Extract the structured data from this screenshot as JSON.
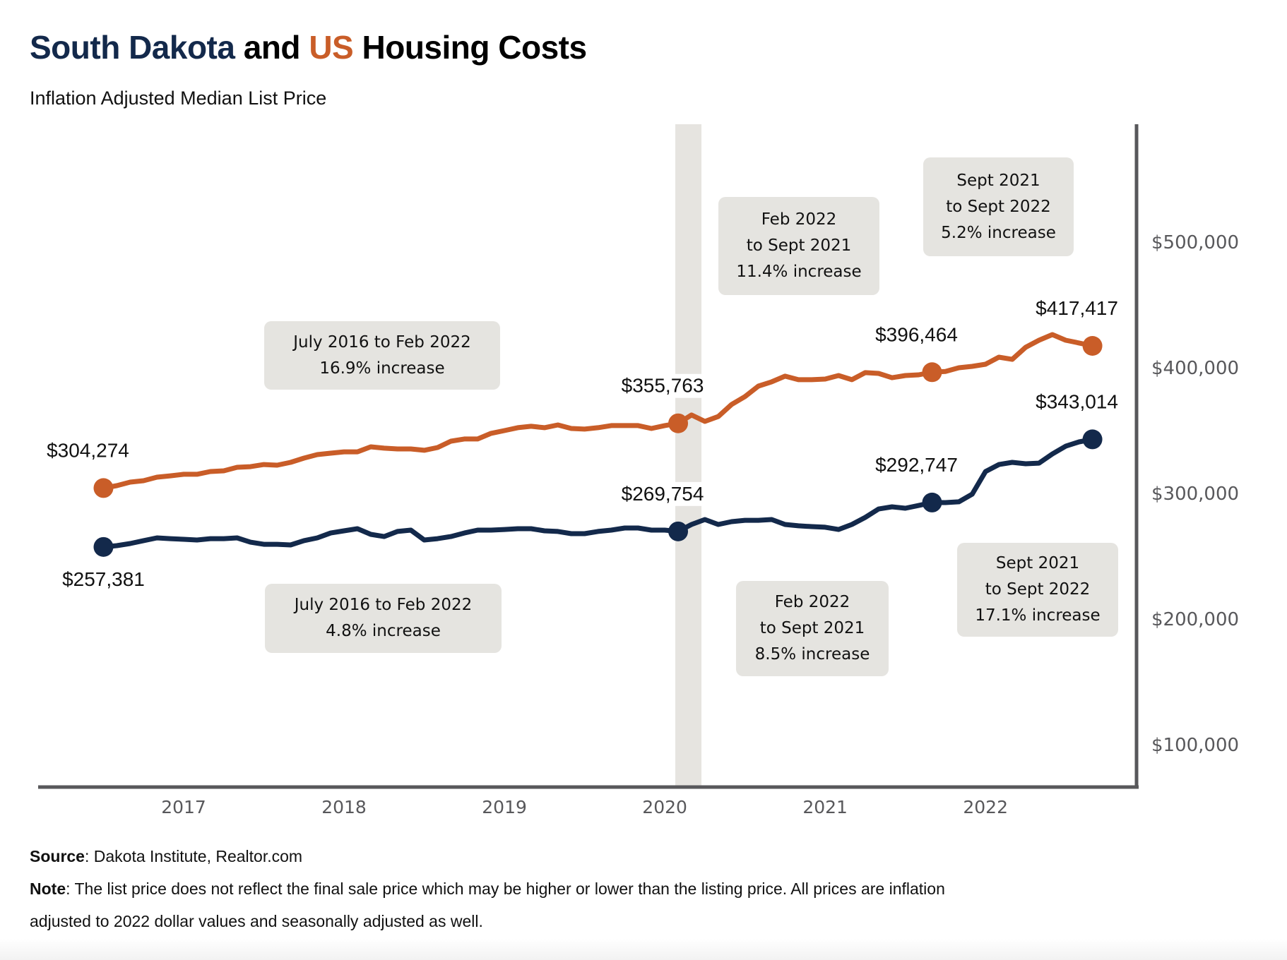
{
  "title": {
    "part1": "South Dakota",
    "part2": " and ",
    "part3": "US",
    "part4": " Housing Costs"
  },
  "subtitle": "Inflation Adjusted Median List Price",
  "colors": {
    "south_dakota": "#13294b",
    "us": "#c95d28",
    "axis": "#58585b",
    "tick_text": "#58585b",
    "band": "#e6e4e0",
    "annotation_bg": "#e5e4e0"
  },
  "footer": {
    "source_label": "Source",
    "source_text": ": Dakota Institute, Realtor.com",
    "note_label": "Note",
    "note_text": ": The list price does not reflect the final sale price which may be higher or lower than the listing price. All prices are inflation",
    "note_text_2": "adjusted to 2022 dollar values and seasonally adjusted as well."
  },
  "annotations": {
    "us_2016_2022": [
      "July 2016 to Feb 2022",
      "16.9% increase"
    ],
    "us_feb22_sep21": [
      "Feb 2022",
      "to Sept 2021",
      "11.4% increase"
    ],
    "us_sep21_sep22": [
      "Sept 2021",
      "to Sept 2022",
      "5.2% increase"
    ],
    "sd_2016_2022": [
      "July 2016 to Feb 2022",
      "4.8% increase"
    ],
    "sd_feb22_sep21": [
      "Feb 2022",
      "to Sept 2021",
      "8.5% increase"
    ],
    "sd_sep21_sep22": [
      "Sept 2021",
      "to Sept 2022",
      "17.1% increase"
    ]
  },
  "chart_data": {
    "type": "line",
    "title": "South Dakota and US Housing Costs",
    "subtitle": "Inflation Adjusted Median List Price",
    "xlabel": "",
    "ylabel": "",
    "x_start": "2016-07",
    "x_end": "2022-09",
    "x_frequency": "monthly",
    "x_ticks": [
      "2017",
      "2018",
      "2019",
      "2020",
      "2021",
      "2022"
    ],
    "y_ticks": [
      "$100,000",
      "$200,000",
      "$300,000",
      "$400,000",
      "$500,000"
    ],
    "y_tick_values": [
      100000,
      200000,
      300000,
      400000,
      500000
    ],
    "y_axis_side": "right",
    "grid": false,
    "legend": "none (series identified by title colors)",
    "highlight_band": {
      "x": "2020-02",
      "label": "vertical shaded band"
    },
    "series": [
      {
        "name": "US",
        "color": "#c95d28",
        "values": [
          304274,
          306200,
          309000,
          310100,
          312900,
          314000,
          315200,
          315200,
          317400,
          318000,
          320800,
          321300,
          323000,
          322500,
          324700,
          328100,
          330900,
          332000,
          333100,
          333100,
          337100,
          336000,
          335400,
          335400,
          334300,
          336500,
          341600,
          343300,
          343300,
          347800,
          350000,
          352300,
          353400,
          352300,
          354500,
          351700,
          351200,
          352300,
          354000,
          354000,
          354000,
          351700,
          354000,
          355763,
          362400,
          357300,
          361200,
          370800,
          377000,
          385400,
          388800,
          393300,
          390500,
          390500,
          391000,
          393800,
          390500,
          396100,
          395500,
          392100,
          393800,
          394400,
          396464,
          397100,
          400000,
          401100,
          402800,
          408400,
          406700,
          416300,
          421900,
          426400,
          421900,
          419700,
          417417
        ]
      },
      {
        "name": "South Dakota",
        "color": "#13294b",
        "values": [
          257381,
          258400,
          260100,
          262400,
          264600,
          264000,
          263500,
          262900,
          264000,
          264000,
          264600,
          261200,
          259500,
          259500,
          259000,
          262400,
          264600,
          268500,
          270200,
          271900,
          267400,
          265700,
          269700,
          270800,
          262900,
          264000,
          265700,
          268500,
          270800,
          270800,
          271300,
          271900,
          271900,
          270200,
          269700,
          268000,
          268000,
          269700,
          270800,
          272500,
          272500,
          270800,
          270800,
          269754,
          275300,
          279200,
          275300,
          277500,
          278600,
          278600,
          279200,
          275300,
          274200,
          273600,
          273100,
          271300,
          275300,
          280900,
          287600,
          289300,
          288200,
          290400,
          292747,
          292700,
          293300,
          299400,
          317400,
          323000,
          324700,
          323600,
          324100,
          331400,
          337600,
          341000,
          343014
        ]
      }
    ],
    "markers": [
      {
        "series": "US",
        "date": "2016-07",
        "value": 304274,
        "label": "$304,274"
      },
      {
        "series": "US",
        "date": "2020-02",
        "value": 355763,
        "label": "$355,763"
      },
      {
        "series": "US",
        "date": "2021-09",
        "value": 396464,
        "label": "$396,464"
      },
      {
        "series": "US",
        "date": "2022-09",
        "value": 417417,
        "label": "$417,417"
      },
      {
        "series": "South Dakota",
        "date": "2016-07",
        "value": 257381,
        "label": "$257,381"
      },
      {
        "series": "South Dakota",
        "date": "2020-02",
        "value": 269754,
        "label": "$269,754"
      },
      {
        "series": "South Dakota",
        "date": "2021-09",
        "value": 292747,
        "label": "$292,747"
      },
      {
        "series": "South Dakota",
        "date": "2022-09",
        "value": 343014,
        "label": "$343,014"
      }
    ]
  }
}
